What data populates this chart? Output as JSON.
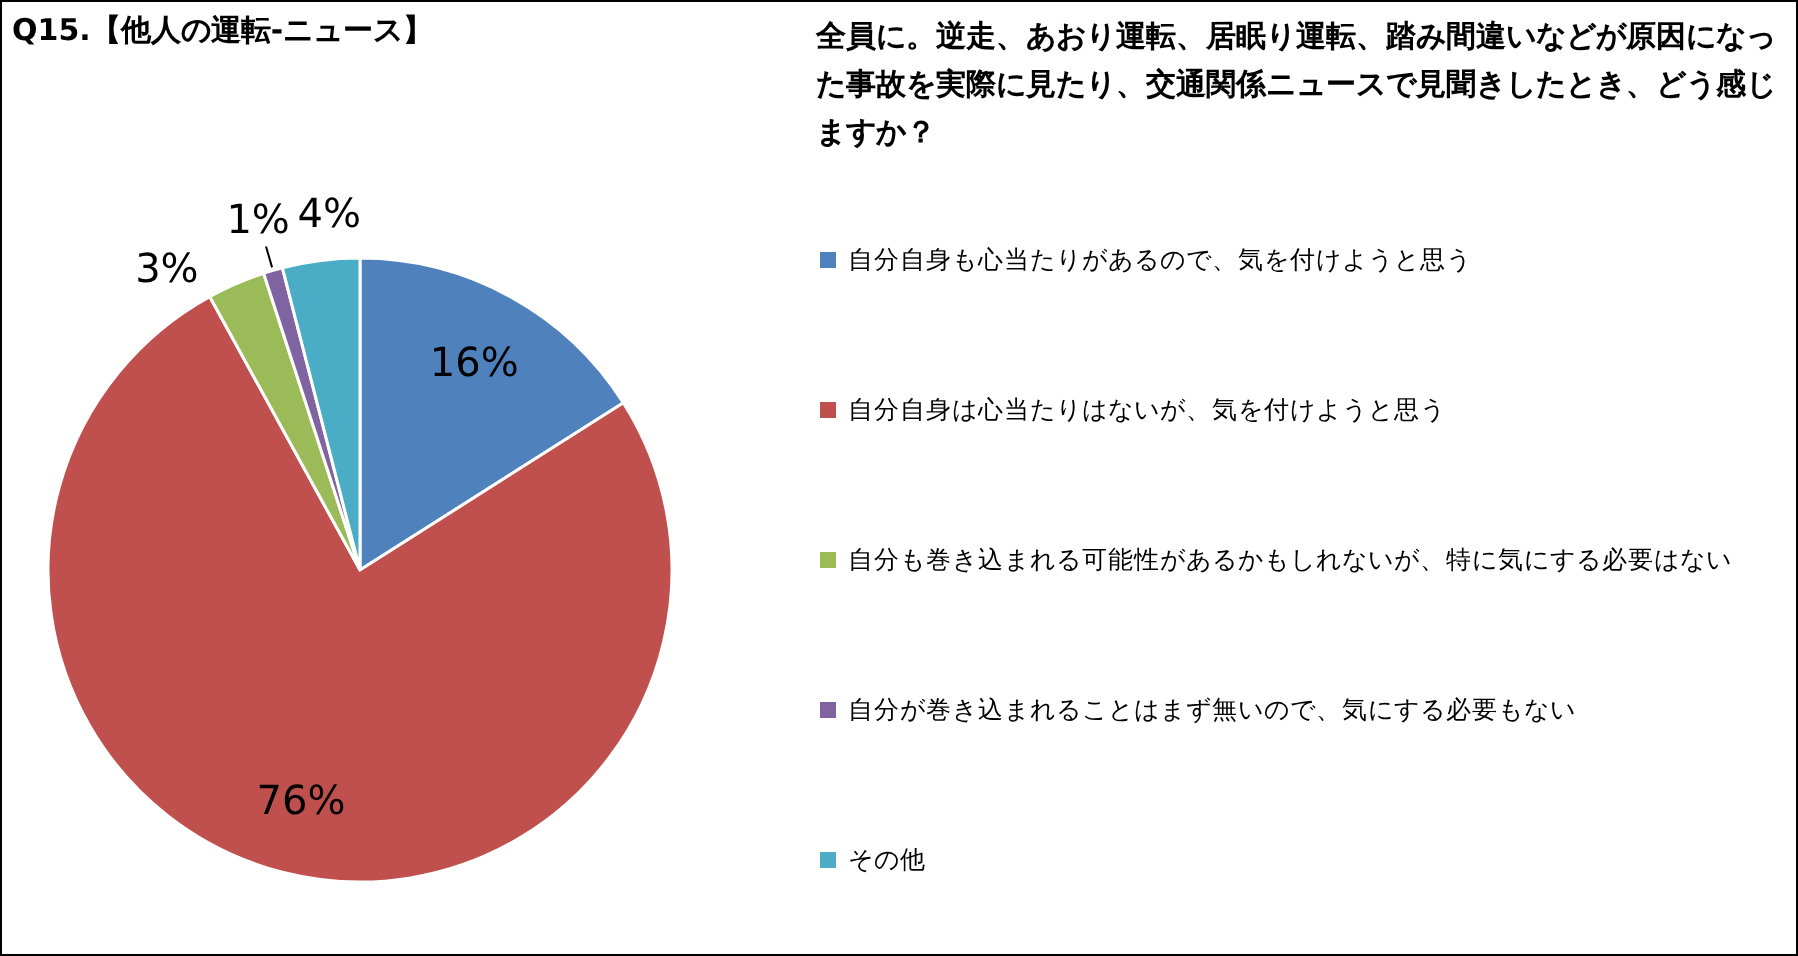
{
  "chart_data": {
    "type": "pie",
    "title": "Q15.【他人の運転-ニュース】",
    "subtitle": "全員に。逆走、あおり運転、居眠り運転、踏み間違いなどが原因になった事故を実際に見たり、交通関係ニュースで見聞きしたとき、どう感じますか？",
    "categories": [
      "自分自身も心当たりがあるので、気を付けようと思う",
      "自分自身は心当たりはないが、気を付けようと思う",
      "自分も巻き込まれる可能性があるかもしれないが、特に気にする必要はない",
      "自分が巻き込まれることはまず無いので、気にする必要もない",
      "その他"
    ],
    "values": [
      16,
      76,
      3,
      1,
      4
    ],
    "colors": [
      "#4f81bd",
      "#c0504d",
      "#9bbb59",
      "#8064a2",
      "#4bacc6"
    ],
    "value_labels": [
      "16%",
      "76%",
      "3%",
      "1%",
      "4%"
    ],
    "legend": "right"
  }
}
